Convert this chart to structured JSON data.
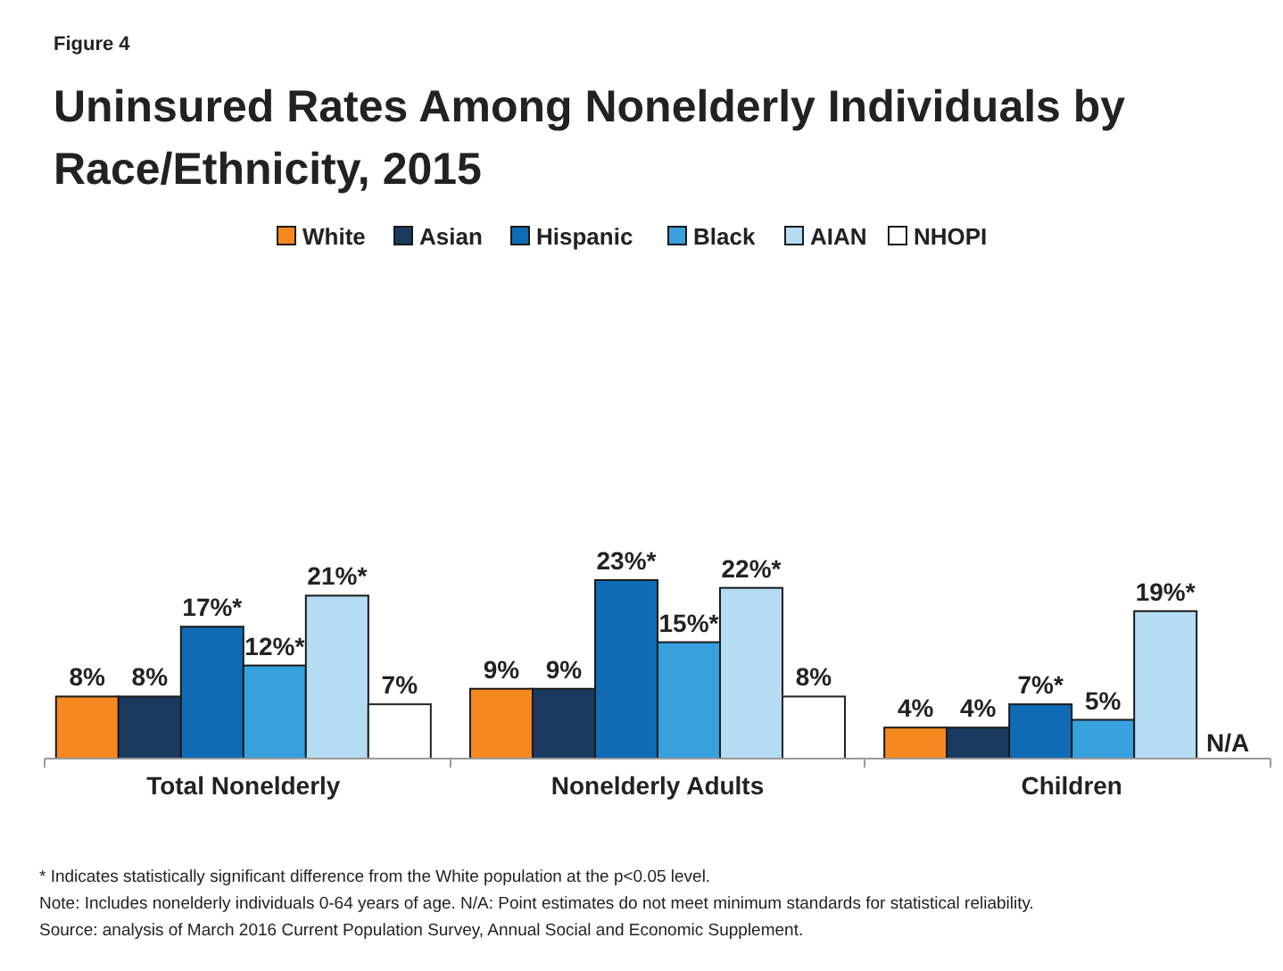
{
  "chart_data": {
    "type": "bar",
    "subtitle": "Figure 4",
    "title": "Uninsured Rates Among Nonelderly Individuals by Race/Ethnicity, 2015",
    "categories": [
      "Total Nonelderly",
      "Nonelderly Adults",
      "Children"
    ],
    "series": [
      {
        "name": "White",
        "color": "#f5891f",
        "values": [
          8,
          9,
          4
        ],
        "value_labels": [
          "8%",
          "9%",
          "4%"
        ]
      },
      {
        "name": "Asian",
        "color": "#1b3a5f",
        "values": [
          8,
          9,
          4
        ],
        "value_labels": [
          "8%",
          "9%",
          "4%"
        ]
      },
      {
        "name": "Hispanic",
        "color": "#0e6bb4",
        "values": [
          17,
          23,
          7
        ],
        "value_labels": [
          "17%*",
          "23%*",
          "7%*"
        ]
      },
      {
        "name": "Black",
        "color": "#38a0dc",
        "values": [
          12,
          15,
          5
        ],
        "value_labels": [
          "12%*",
          "15%*",
          "5%"
        ]
      },
      {
        "name": "AIAN",
        "color": "#b4dcf2",
        "values": [
          21,
          22,
          19
        ],
        "value_labels": [
          "21%*",
          "22%*",
          "19%*"
        ]
      },
      {
        "name": "NHOPI",
        "color": "#ffffff",
        "values": [
          7,
          8,
          null
        ],
        "value_labels": [
          "7%",
          "8%",
          "N/A"
        ]
      }
    ],
    "legend": "top",
    "annotations": [
      "* Indicates statistically significant difference from the White population at the p<0.05 level.",
      "Note: Includes nonelderly individuals 0-64 years of age. N/A: Point estimates do not meet minimum standards for statistical reliability.",
      "Source: analysis of March 2016 Current Population Survey, Annual Social and Economic Supplement."
    ]
  }
}
